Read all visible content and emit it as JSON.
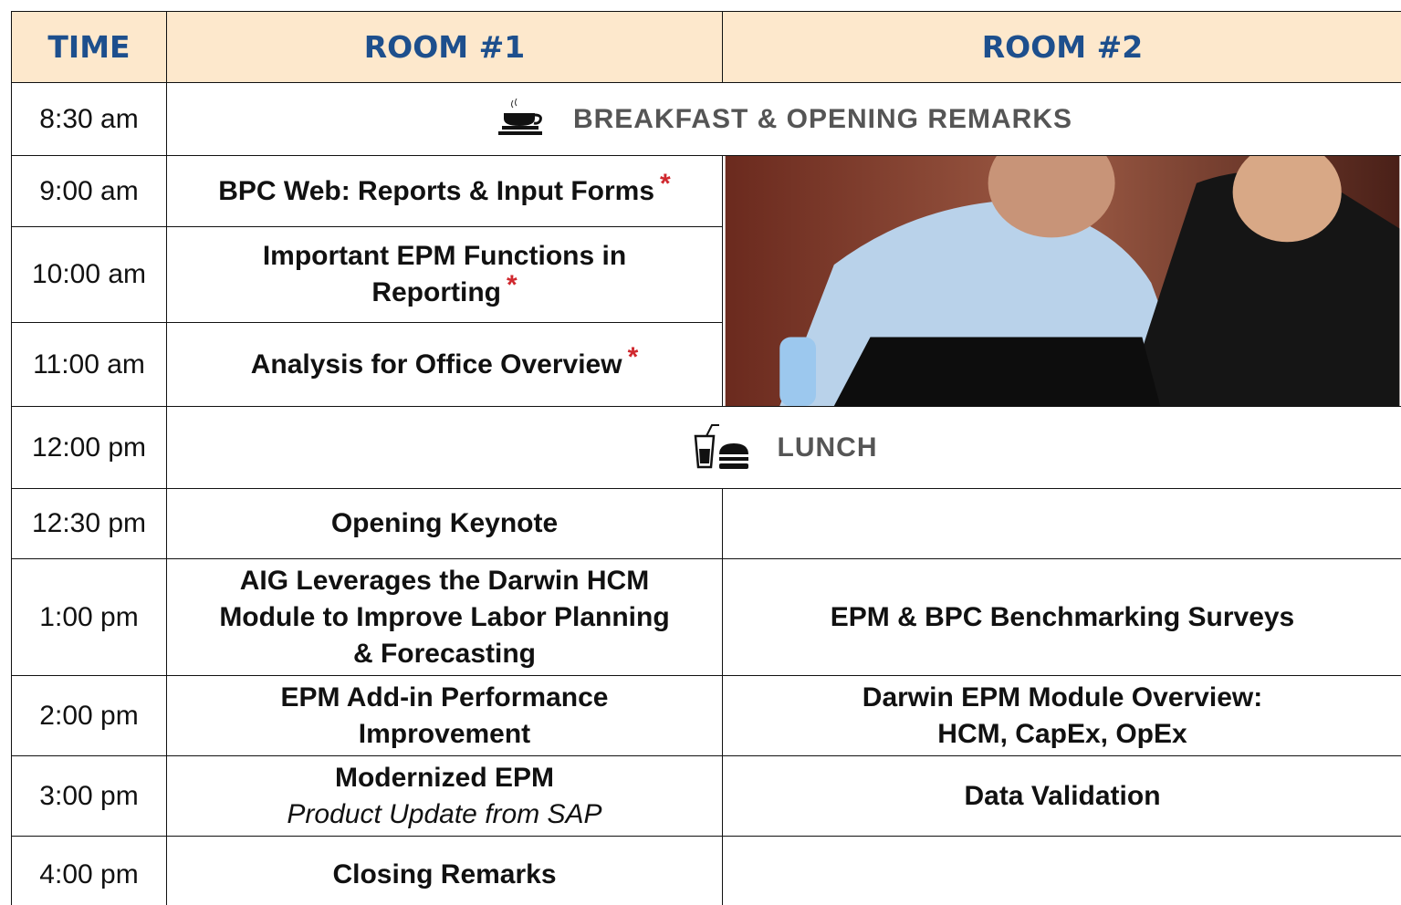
{
  "header": [
    "TIME",
    "ROOM #1",
    "ROOM #2"
  ],
  "rows": [
    {
      "time": "8:30 am",
      "span": "BREAKFAST & OPENING REMARKS"
    },
    {
      "time": "9:00 am",
      "room1": {
        "lines": [
          "BPC Web: Reports & Input Forms"
        ],
        "marker": "*"
      }
    },
    {
      "time": "10:00 am",
      "room1": {
        "lines": [
          "Important EPM Functions in",
          "Reporting"
        ],
        "marker": "*"
      }
    },
    {
      "time": "11:00 am",
      "room1": {
        "lines": [
          "Analysis for Office Overview"
        ],
        "marker": "*"
      }
    },
    {
      "time": "12:00 pm",
      "span": "LUNCH"
    },
    {
      "time": "12:30 pm",
      "room1": {
        "lines": [
          "Opening Keynote"
        ]
      }
    },
    {
      "time": "1:00 pm",
      "room1": {
        "lines": [
          "AIG Leverages the Darwin HCM",
          "Module to Improve Labor Planning",
          "& Forecasting"
        ]
      },
      "room2": {
        "lines": [
          "EPM & BPC Benchmarking Surveys"
        ]
      }
    },
    {
      "time": "2:00 pm",
      "room1": {
        "lines": [
          "EPM Add-in Performance",
          "Improvement"
        ]
      },
      "room2": {
        "lines": [
          "Darwin EPM Module Overview:",
          "HCM, CapEx, OpEx"
        ]
      }
    },
    {
      "time": "3:00 pm",
      "room1": {
        "lines": [
          "Modernized EPM"
        ],
        "subtitle": "Product Update from SAP"
      },
      "room2": {
        "lines": [
          "Data Validation"
        ]
      }
    },
    {
      "time": "4:00 pm",
      "room1": {
        "lines": [
          "Closing Remarks"
        ]
      }
    }
  ]
}
